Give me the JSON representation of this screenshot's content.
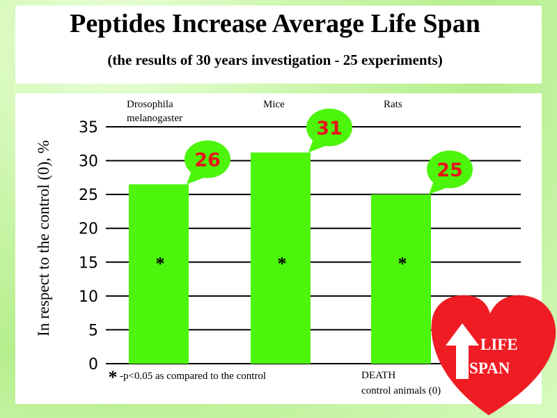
{
  "header": {
    "title": "Peptides Increase Average Life Span",
    "subtitle": "(the results of 30 years investigation - 25 experiments)"
  },
  "chart_data": {
    "type": "bar",
    "categories": [
      "Drosophila melanogaster",
      "Mice",
      "Rats"
    ],
    "category_lines": [
      [
        "Drosophila",
        "melanogaster"
      ],
      [
        "Mice"
      ],
      [
        "Rats"
      ]
    ],
    "values": [
      26.5,
      31.2,
      25.0
    ],
    "data_labels": [
      "26",
      "31",
      "25"
    ],
    "significance_marks": [
      "*",
      "*",
      "*"
    ],
    "ylabel": "In respect to the control (0), %",
    "ylim": [
      0,
      35
    ],
    "yticks": [
      "0",
      "5",
      "10",
      "15",
      "20",
      "25",
      "30",
      "35"
    ],
    "grid": true,
    "bar_color": "#4cf50b",
    "bubble_color": "#4cf50b",
    "label_color": "#e8141b"
  },
  "footnote": {
    "symbol": "*",
    "text": "-p<0.05 as compared to the control"
  },
  "baseline_note": [
    "DEATH",
    "control animals (0)"
  ],
  "logo": {
    "line1": "LIFE",
    "line2": "SPAN",
    "heart_color": "#f01c24",
    "icon": "up-arrow-icon"
  }
}
